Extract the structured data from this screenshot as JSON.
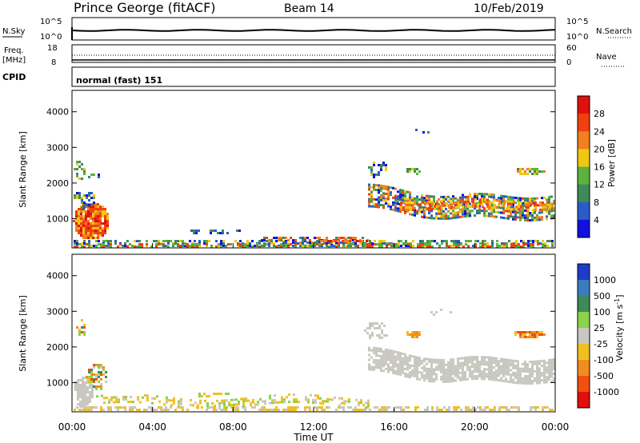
{
  "header": {
    "station": "Prince George (fitACF)",
    "beam": "Beam 14",
    "date": "10/Feb/2019"
  },
  "top_panel": {
    "left_label": "N.Sky",
    "right_label": "N.Search",
    "left_ticks": [
      "10^5",
      "10^0"
    ],
    "right_ticks": [
      "10^5",
      "10^0"
    ]
  },
  "freq_panel": {
    "left_label_1": "Freq.",
    "left_label_2": "[MHz]",
    "right_label": "Nave",
    "left_ticks": [
      "18",
      "8"
    ],
    "right_ticks": [
      "60",
      "0"
    ]
  },
  "cpid": {
    "label": "CPID",
    "value": "normal (fast) 151"
  },
  "chart_data": [
    {
      "type": "heatmap",
      "name": "power",
      "ylabel": "Slant Range [km]",
      "y_ticks": [
        1000,
        2000,
        3000,
        4000
      ],
      "ylim": [
        180,
        4600
      ],
      "colorbar_label": "Power [dB]",
      "colorbar_ticks": [
        4,
        8,
        12,
        16,
        20,
        24,
        28
      ],
      "colorbar_range": [
        0,
        32
      ],
      "colors": [
        "#1010e0",
        "#2a5cc8",
        "#3d8a5a",
        "#5cb23c",
        "#f0c810",
        "#f08020",
        "#f04010",
        "#e01010"
      ]
    },
    {
      "type": "heatmap",
      "name": "velocity",
      "ylabel": "Slant Range [km]",
      "y_ticks": [
        1000,
        2000,
        3000,
        4000
      ],
      "ylim": [
        180,
        4600
      ],
      "xlabel": "Time UT",
      "x_ticks": [
        "00:00",
        "04:00",
        "08:00",
        "12:00",
        "16:00",
        "20:00",
        "00:00"
      ],
      "colorbar_label": "Velocity [m s^-1]",
      "colorbar_ticks": [
        "1000",
        "500",
        "100",
        "25",
        "-25",
        "-100",
        "-500",
        "-1000"
      ],
      "colors": [
        "#1c3cc8",
        "#3a7cc0",
        "#3d8a5a",
        "#8ad24a",
        "#c8c8c0",
        "#f0c020",
        "#f08c20",
        "#f05010",
        "#e01010"
      ]
    }
  ]
}
